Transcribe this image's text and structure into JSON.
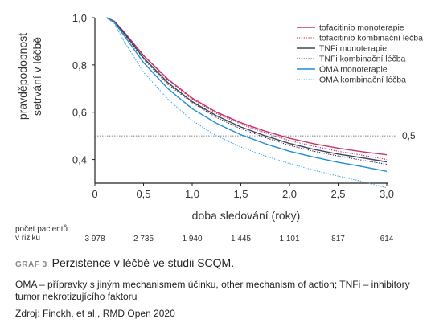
{
  "chart_data": {
    "type": "line",
    "xlabel": "doba sledování (roky)",
    "ylabel_lines": [
      "pravděpodobnost",
      "setrvání v léčbě"
    ],
    "xlim": [
      0,
      3.0
    ],
    "ylim": [
      0.3,
      1.0
    ],
    "x_ticks": [
      "0",
      "0,5",
      "1,0",
      "1,5",
      "2,0",
      "2,5",
      "3,0"
    ],
    "y_ticks": [
      "0,4",
      "0,6",
      "0,8",
      "1,0"
    ],
    "reference_line": {
      "y": 0.5,
      "label": "0,5"
    },
    "legend_position": "top-right",
    "series": [
      {
        "name": "tofacitinib monoterapie",
        "color": "#c8336a",
        "dash": "solid",
        "x": [
          0.12,
          0.2,
          0.3,
          0.5,
          0.75,
          1.0,
          1.25,
          1.5,
          1.75,
          2.0,
          2.25,
          2.5,
          2.75,
          3.0
        ],
        "y": [
          1.0,
          0.985,
          0.94,
          0.84,
          0.74,
          0.66,
          0.6,
          0.556,
          0.52,
          0.49,
          0.467,
          0.448,
          0.433,
          0.42
        ]
      },
      {
        "name": "tofacitinib kombinační léčba",
        "color": "#b3275a",
        "dash": "dotted",
        "x": [
          0.12,
          0.2,
          0.3,
          0.5,
          0.75,
          1.0,
          1.25,
          1.5,
          1.75,
          2.0,
          2.25,
          2.5,
          2.75,
          3.0
        ],
        "y": [
          1.0,
          0.985,
          0.94,
          0.84,
          0.735,
          0.655,
          0.595,
          0.55,
          0.513,
          0.48,
          0.456,
          0.435,
          0.418,
          0.4
        ]
      },
      {
        "name": "TNFi monoterapie",
        "color": "#3f4560",
        "dash": "solid",
        "x": [
          0.12,
          0.2,
          0.3,
          0.5,
          0.75,
          1.0,
          1.25,
          1.5,
          1.75,
          2.0,
          2.25,
          2.5,
          2.75,
          3.0
        ],
        "y": [
          1.0,
          0.983,
          0.935,
          0.83,
          0.725,
          0.645,
          0.585,
          0.538,
          0.5,
          0.468,
          0.443,
          0.423,
          0.407,
          0.39
        ]
      },
      {
        "name": "TNFi kombinační léčba",
        "color": "#33364a",
        "dash": "dotted",
        "x": [
          0.12,
          0.2,
          0.3,
          0.5,
          0.75,
          1.0,
          1.25,
          1.5,
          1.75,
          2.0,
          2.25,
          2.5,
          2.75,
          3.0
        ],
        "y": [
          1.0,
          0.982,
          0.93,
          0.825,
          0.718,
          0.64,
          0.578,
          0.53,
          0.493,
          0.46,
          0.435,
          0.415,
          0.397,
          0.38
        ]
      },
      {
        "name": "OMA monoterapie",
        "color": "#1f8ed8",
        "dash": "solid",
        "x": [
          0.12,
          0.2,
          0.3,
          0.5,
          0.75,
          1.0,
          1.25,
          1.5,
          1.75,
          2.0,
          2.25,
          2.5,
          2.75,
          3.0
        ],
        "y": [
          1.0,
          0.98,
          0.925,
          0.81,
          0.7,
          0.615,
          0.553,
          0.505,
          0.467,
          0.435,
          0.41,
          0.388,
          0.37,
          0.35
        ]
      },
      {
        "name": "OMA kombinační léčba",
        "color": "#3fa6e6",
        "dash": "dotted",
        "x": [
          0.12,
          0.2,
          0.3,
          0.5,
          0.75,
          1.0,
          1.25,
          1.5,
          1.75,
          2.0,
          2.25,
          2.5,
          2.75,
          3.0
        ],
        "y": [
          1.0,
          0.975,
          0.9,
          0.77,
          0.655,
          0.565,
          0.5,
          0.453,
          0.415,
          0.383,
          0.355,
          0.33,
          0.307,
          0.28
        ]
      }
    ],
    "risk_table": {
      "label_lines": [
        "počet pacientů",
        "v riziku"
      ],
      "x": [
        0,
        0.5,
        1.0,
        1.5,
        2.0,
        2.5,
        3.0
      ],
      "values": [
        "3 978",
        "2 735",
        "1 940",
        "1 445",
        "1 101",
        "817",
        "614"
      ]
    }
  },
  "caption": {
    "graf_label": "GRAF 3",
    "title": "Perzistence v léčbě ve studii SCQM.",
    "note": "OMA – přípravky s jiným mechanismem účinku, other mechanism of action; TNFi – inhibitory tumor nekrotizujícího faktoru",
    "source": "Zdroj: Finckh, et al., RMD Open 2020"
  }
}
